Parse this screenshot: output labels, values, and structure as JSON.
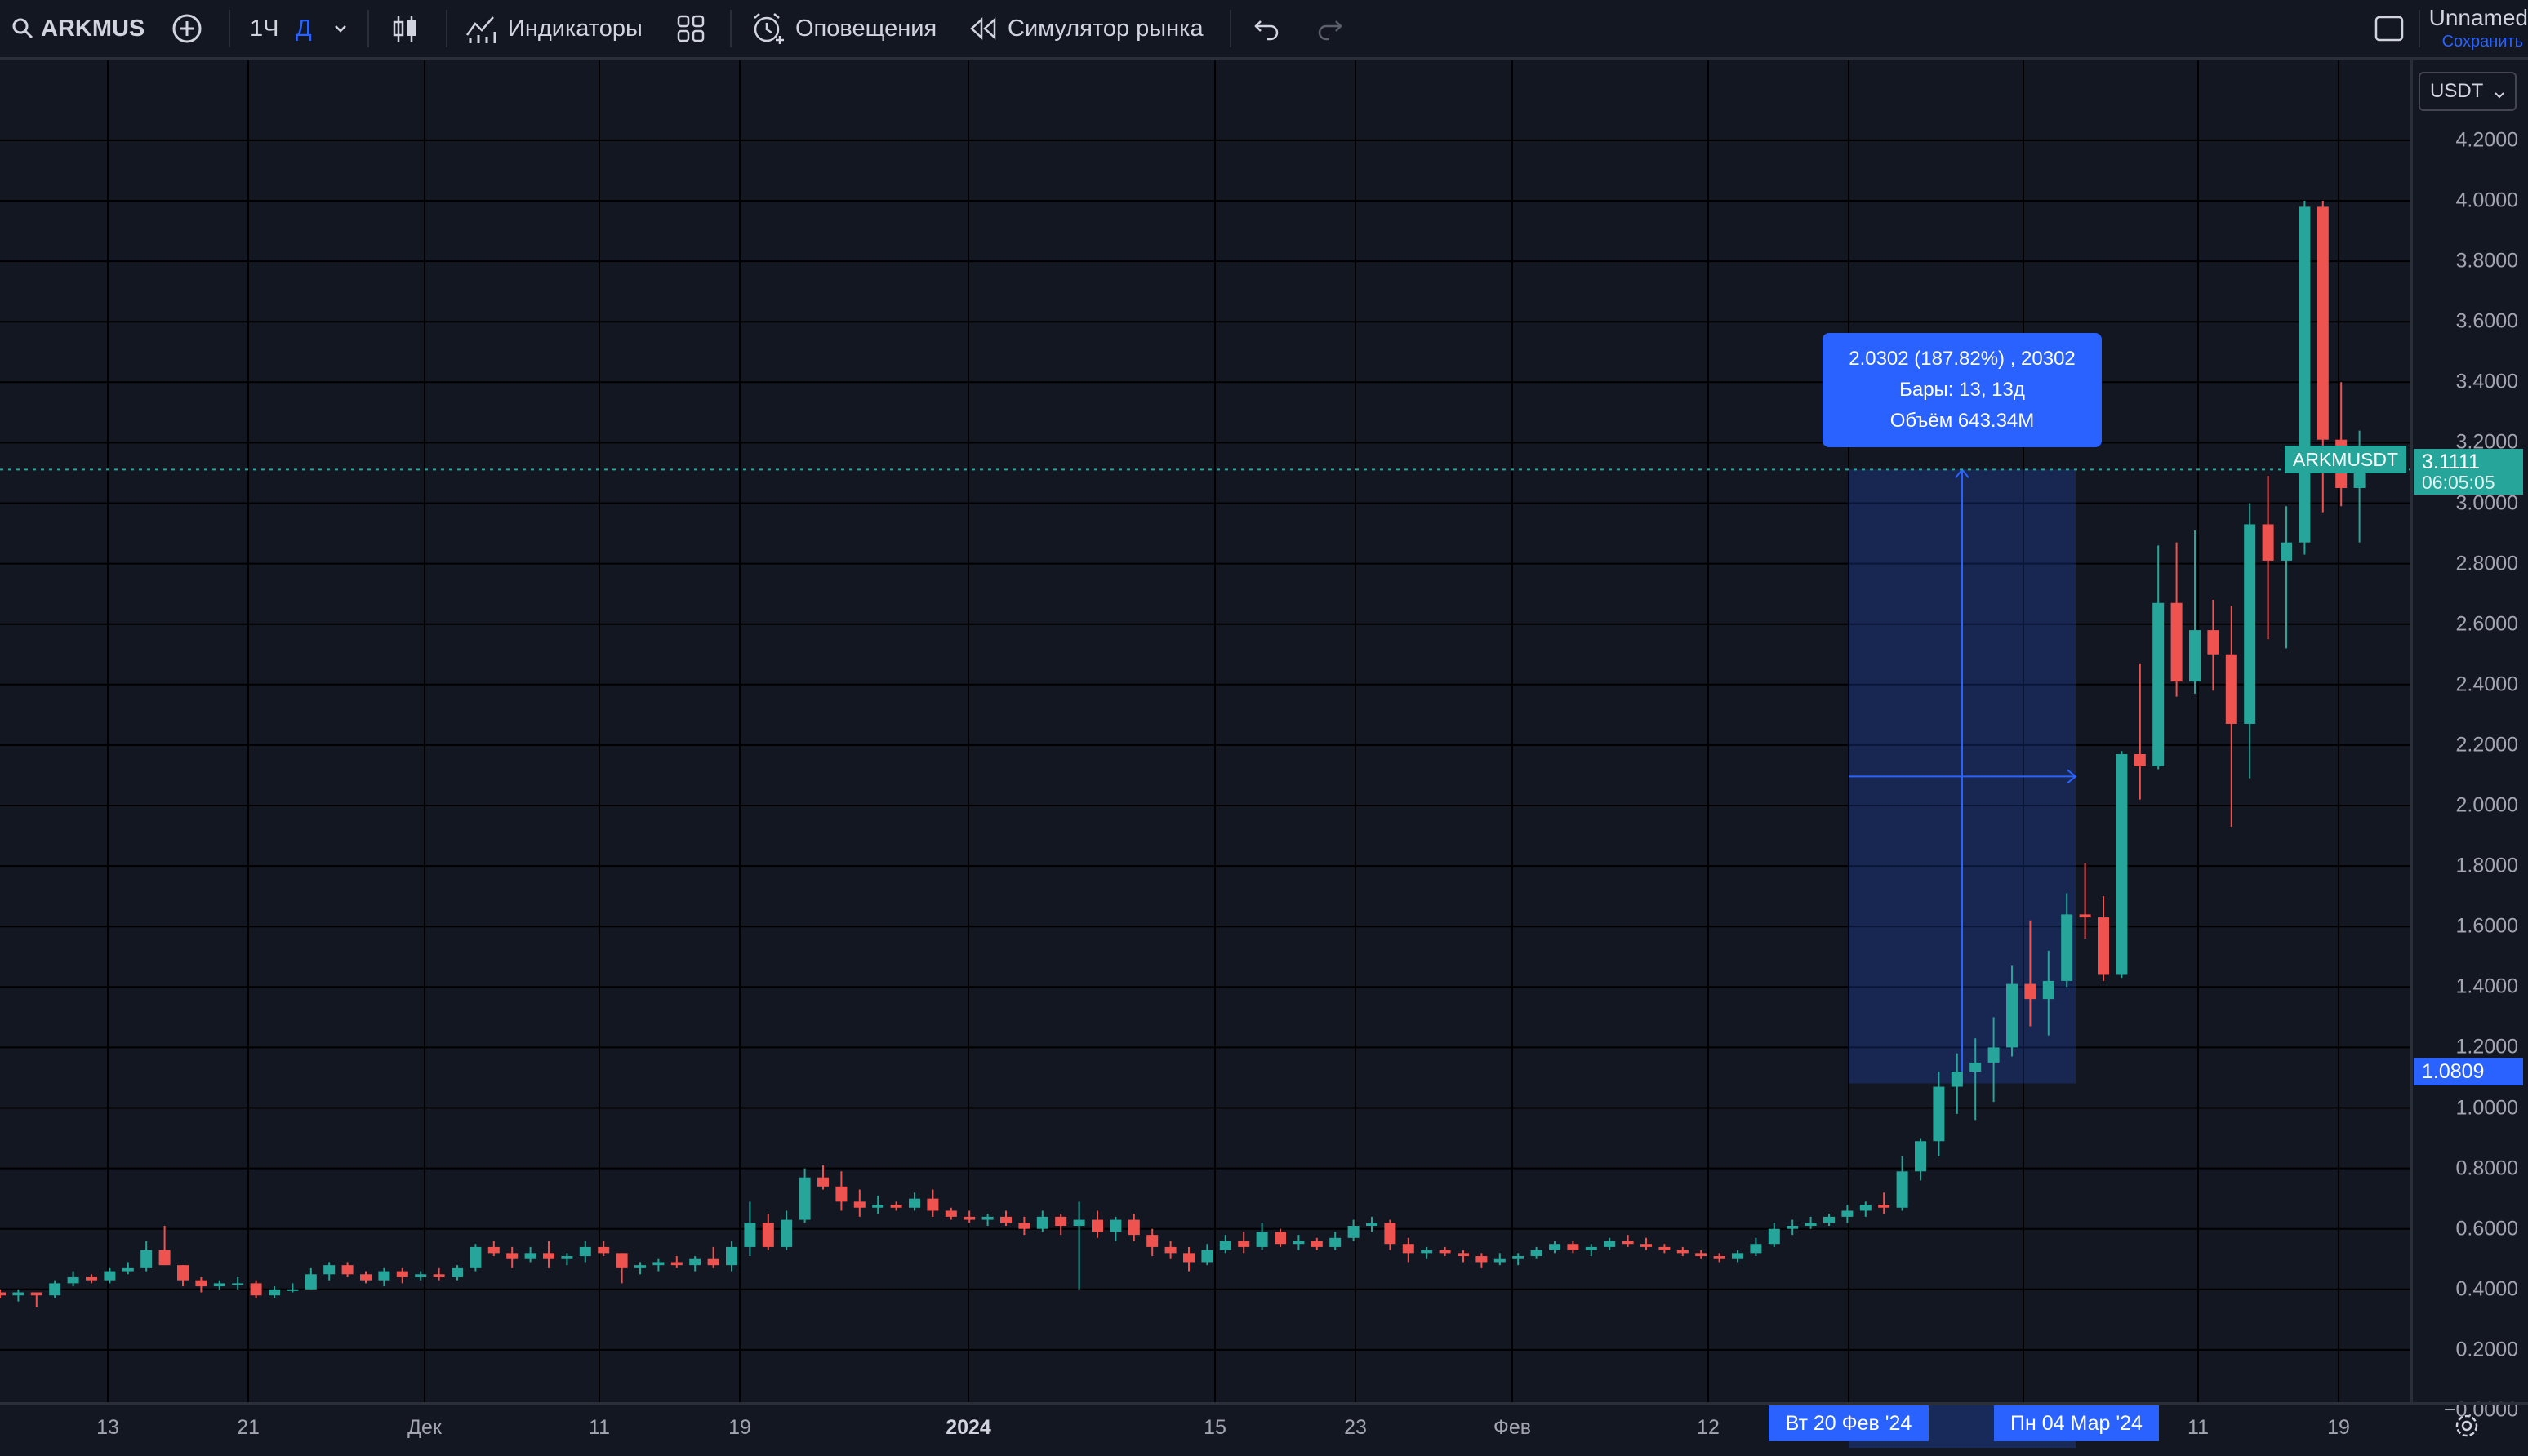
{
  "toolbar": {
    "symbol": "ARKMUS",
    "interval": "1Ч",
    "interval_alt": "Д",
    "indicators_label": "Индикаторы",
    "alerts_label": "Оповещения",
    "replay_label": "Симулятор рынка",
    "layout_name": "Unnamed",
    "save_label": "Сохранить"
  },
  "price_scale": {
    "currency": "USDT",
    "labels": [
      "4.2000",
      "4.0000",
      "3.8000",
      "3.6000",
      "3.4000",
      "3.2000",
      "3.0000",
      "2.8000",
      "2.6000",
      "2.4000",
      "2.2000",
      "2.0000",
      "1.8000",
      "1.6000",
      "1.4000",
      "1.2000",
      "1.0000",
      "0.8000",
      "0.6000",
      "0.4000",
      "0.2000",
      "−0.0000"
    ]
  },
  "time_scale": {
    "labels": [
      "13",
      "21",
      "Дек",
      "11",
      "19",
      "2024",
      "15",
      "23",
      "Фев",
      "12",
      "11",
      "19"
    ]
  },
  "measure_tooltip": {
    "line1": "2.0302 (187.82%) , 20302",
    "line2": "Бары: 13, 13д",
    "line3": "Объём 643.34M"
  },
  "last_price": {
    "symbol": "ARKMUSDT",
    "price": "3.1111",
    "countdown": "06:05:05"
  },
  "measure": {
    "start_price": "1.0809",
    "start_date": "Вт 20 Фев '24",
    "end_date": "Пн 04 Мар '24"
  },
  "colors": {
    "up": "#26a69a",
    "down": "#ef5350",
    "accent": "#2962ff",
    "background": "#131722",
    "grid": "#000000"
  },
  "chart_data": {
    "type": "candlestick",
    "symbol": "ARKMUSDT",
    "ylim": [
      0,
      4.3
    ],
    "candles": [
      {
        "o": 0.39,
        "h": 0.4,
        "l": 0.37,
        "c": 0.38
      },
      {
        "o": 0.38,
        "h": 0.4,
        "l": 0.36,
        "c": 0.39
      },
      {
        "o": 0.39,
        "h": 0.39,
        "l": 0.34,
        "c": 0.38
      },
      {
        "o": 0.38,
        "h": 0.43,
        "l": 0.37,
        "c": 0.42
      },
      {
        "o": 0.42,
        "h": 0.46,
        "l": 0.41,
        "c": 0.44
      },
      {
        "o": 0.44,
        "h": 0.45,
        "l": 0.42,
        "c": 0.43
      },
      {
        "o": 0.43,
        "h": 0.47,
        "l": 0.42,
        "c": 0.46
      },
      {
        "o": 0.46,
        "h": 0.49,
        "l": 0.45,
        "c": 0.47
      },
      {
        "o": 0.47,
        "h": 0.56,
        "l": 0.46,
        "c": 0.53
      },
      {
        "o": 0.53,
        "h": 0.61,
        "l": 0.48,
        "c": 0.48
      },
      {
        "o": 0.48,
        "h": 0.48,
        "l": 0.41,
        "c": 0.43
      },
      {
        "o": 0.43,
        "h": 0.44,
        "l": 0.39,
        "c": 0.41
      },
      {
        "o": 0.41,
        "h": 0.43,
        "l": 0.4,
        "c": 0.42
      },
      {
        "o": 0.42,
        "h": 0.44,
        "l": 0.4,
        "c": 0.42
      },
      {
        "o": 0.42,
        "h": 0.43,
        "l": 0.37,
        "c": 0.38
      },
      {
        "o": 0.38,
        "h": 0.41,
        "l": 0.37,
        "c": 0.4
      },
      {
        "o": 0.4,
        "h": 0.42,
        "l": 0.39,
        "c": 0.4
      },
      {
        "o": 0.4,
        "h": 0.47,
        "l": 0.4,
        "c": 0.45
      },
      {
        "o": 0.45,
        "h": 0.49,
        "l": 0.43,
        "c": 0.48
      },
      {
        "o": 0.48,
        "h": 0.49,
        "l": 0.44,
        "c": 0.45
      },
      {
        "o": 0.45,
        "h": 0.46,
        "l": 0.42,
        "c": 0.43
      },
      {
        "o": 0.43,
        "h": 0.47,
        "l": 0.41,
        "c": 0.46
      },
      {
        "o": 0.46,
        "h": 0.47,
        "l": 0.42,
        "c": 0.44
      },
      {
        "o": 0.44,
        "h": 0.46,
        "l": 0.43,
        "c": 0.45
      },
      {
        "o": 0.45,
        "h": 0.47,
        "l": 0.43,
        "c": 0.44
      },
      {
        "o": 0.44,
        "h": 0.48,
        "l": 0.43,
        "c": 0.47
      },
      {
        "o": 0.47,
        "h": 0.55,
        "l": 0.46,
        "c": 0.54
      },
      {
        "o": 0.54,
        "h": 0.56,
        "l": 0.51,
        "c": 0.52
      },
      {
        "o": 0.52,
        "h": 0.54,
        "l": 0.47,
        "c": 0.5
      },
      {
        "o": 0.5,
        "h": 0.54,
        "l": 0.49,
        "c": 0.52
      },
      {
        "o": 0.52,
        "h": 0.56,
        "l": 0.47,
        "c": 0.5
      },
      {
        "o": 0.5,
        "h": 0.52,
        "l": 0.48,
        "c": 0.51
      },
      {
        "o": 0.51,
        "h": 0.56,
        "l": 0.49,
        "c": 0.54
      },
      {
        "o": 0.54,
        "h": 0.56,
        "l": 0.51,
        "c": 0.52
      },
      {
        "o": 0.52,
        "h": 0.52,
        "l": 0.42,
        "c": 0.47
      },
      {
        "o": 0.47,
        "h": 0.49,
        "l": 0.45,
        "c": 0.48
      },
      {
        "o": 0.48,
        "h": 0.5,
        "l": 0.46,
        "c": 0.49
      },
      {
        "o": 0.49,
        "h": 0.51,
        "l": 0.47,
        "c": 0.48
      },
      {
        "o": 0.48,
        "h": 0.51,
        "l": 0.46,
        "c": 0.5
      },
      {
        "o": 0.5,
        "h": 0.54,
        "l": 0.47,
        "c": 0.48
      },
      {
        "o": 0.48,
        "h": 0.56,
        "l": 0.46,
        "c": 0.54
      },
      {
        "o": 0.54,
        "h": 0.69,
        "l": 0.51,
        "c": 0.62
      },
      {
        "o": 0.62,
        "h": 0.65,
        "l": 0.53,
        "c": 0.54
      },
      {
        "o": 0.54,
        "h": 0.66,
        "l": 0.53,
        "c": 0.63
      },
      {
        "o": 0.63,
        "h": 0.8,
        "l": 0.62,
        "c": 0.77
      },
      {
        "o": 0.77,
        "h": 0.81,
        "l": 0.73,
        "c": 0.74
      },
      {
        "o": 0.74,
        "h": 0.79,
        "l": 0.66,
        "c": 0.69
      },
      {
        "o": 0.69,
        "h": 0.73,
        "l": 0.64,
        "c": 0.67
      },
      {
        "o": 0.67,
        "h": 0.71,
        "l": 0.65,
        "c": 0.68
      },
      {
        "o": 0.68,
        "h": 0.69,
        "l": 0.66,
        "c": 0.67
      },
      {
        "o": 0.67,
        "h": 0.72,
        "l": 0.66,
        "c": 0.7
      },
      {
        "o": 0.7,
        "h": 0.73,
        "l": 0.64,
        "c": 0.66
      },
      {
        "o": 0.66,
        "h": 0.67,
        "l": 0.63,
        "c": 0.64
      },
      {
        "o": 0.64,
        "h": 0.66,
        "l": 0.62,
        "c": 0.63
      },
      {
        "o": 0.63,
        "h": 0.65,
        "l": 0.61,
        "c": 0.64
      },
      {
        "o": 0.64,
        "h": 0.66,
        "l": 0.61,
        "c": 0.62
      },
      {
        "o": 0.62,
        "h": 0.64,
        "l": 0.58,
        "c": 0.6
      },
      {
        "o": 0.6,
        "h": 0.66,
        "l": 0.59,
        "c": 0.64
      },
      {
        "o": 0.64,
        "h": 0.65,
        "l": 0.58,
        "c": 0.61
      },
      {
        "o": 0.61,
        "h": 0.69,
        "l": 0.4,
        "c": 0.63
      },
      {
        "o": 0.63,
        "h": 0.66,
        "l": 0.57,
        "c": 0.59
      },
      {
        "o": 0.59,
        "h": 0.64,
        "l": 0.56,
        "c": 0.63
      },
      {
        "o": 0.63,
        "h": 0.65,
        "l": 0.56,
        "c": 0.58
      },
      {
        "o": 0.58,
        "h": 0.6,
        "l": 0.51,
        "c": 0.54
      },
      {
        "o": 0.54,
        "h": 0.56,
        "l": 0.5,
        "c": 0.52
      },
      {
        "o": 0.52,
        "h": 0.54,
        "l": 0.46,
        "c": 0.49
      },
      {
        "o": 0.49,
        "h": 0.55,
        "l": 0.48,
        "c": 0.53
      },
      {
        "o": 0.53,
        "h": 0.58,
        "l": 0.52,
        "c": 0.56
      },
      {
        "o": 0.56,
        "h": 0.59,
        "l": 0.52,
        "c": 0.54
      },
      {
        "o": 0.54,
        "h": 0.62,
        "l": 0.53,
        "c": 0.59
      },
      {
        "o": 0.59,
        "h": 0.6,
        "l": 0.54,
        "c": 0.55
      },
      {
        "o": 0.55,
        "h": 0.58,
        "l": 0.53,
        "c": 0.56
      },
      {
        "o": 0.56,
        "h": 0.57,
        "l": 0.53,
        "c": 0.54
      },
      {
        "o": 0.54,
        "h": 0.59,
        "l": 0.53,
        "c": 0.57
      },
      {
        "o": 0.57,
        "h": 0.63,
        "l": 0.56,
        "c": 0.61
      },
      {
        "o": 0.61,
        "h": 0.64,
        "l": 0.59,
        "c": 0.62
      },
      {
        "o": 0.62,
        "h": 0.63,
        "l": 0.53,
        "c": 0.55
      },
      {
        "o": 0.55,
        "h": 0.57,
        "l": 0.49,
        "c": 0.52
      },
      {
        "o": 0.52,
        "h": 0.54,
        "l": 0.5,
        "c": 0.53
      },
      {
        "o": 0.53,
        "h": 0.54,
        "l": 0.51,
        "c": 0.52
      },
      {
        "o": 0.52,
        "h": 0.53,
        "l": 0.49,
        "c": 0.51
      },
      {
        "o": 0.51,
        "h": 0.52,
        "l": 0.47,
        "c": 0.49
      },
      {
        "o": 0.49,
        "h": 0.52,
        "l": 0.48,
        "c": 0.5
      },
      {
        "o": 0.5,
        "h": 0.52,
        "l": 0.48,
        "c": 0.51
      },
      {
        "o": 0.51,
        "h": 0.54,
        "l": 0.5,
        "c": 0.53
      },
      {
        "o": 0.53,
        "h": 0.56,
        "l": 0.52,
        "c": 0.55
      },
      {
        "o": 0.55,
        "h": 0.56,
        "l": 0.52,
        "c": 0.53
      },
      {
        "o": 0.53,
        "h": 0.55,
        "l": 0.51,
        "c": 0.54
      },
      {
        "o": 0.54,
        "h": 0.57,
        "l": 0.53,
        "c": 0.56
      },
      {
        "o": 0.56,
        "h": 0.58,
        "l": 0.54,
        "c": 0.55
      },
      {
        "o": 0.55,
        "h": 0.57,
        "l": 0.53,
        "c": 0.54
      },
      {
        "o": 0.54,
        "h": 0.55,
        "l": 0.52,
        "c": 0.53
      },
      {
        "o": 0.53,
        "h": 0.54,
        "l": 0.51,
        "c": 0.52
      },
      {
        "o": 0.52,
        "h": 0.53,
        "l": 0.5,
        "c": 0.51
      },
      {
        "o": 0.51,
        "h": 0.52,
        "l": 0.49,
        "c": 0.5
      },
      {
        "o": 0.5,
        "h": 0.53,
        "l": 0.49,
        "c": 0.52
      },
      {
        "o": 0.52,
        "h": 0.57,
        "l": 0.51,
        "c": 0.55
      },
      {
        "o": 0.55,
        "h": 0.62,
        "l": 0.54,
        "c": 0.6
      },
      {
        "o": 0.6,
        "h": 0.63,
        "l": 0.58,
        "c": 0.61
      },
      {
        "o": 0.61,
        "h": 0.64,
        "l": 0.6,
        "c": 0.62
      },
      {
        "o": 0.62,
        "h": 0.65,
        "l": 0.61,
        "c": 0.64
      },
      {
        "o": 0.64,
        "h": 0.68,
        "l": 0.62,
        "c": 0.66
      },
      {
        "o": 0.66,
        "h": 0.69,
        "l": 0.64,
        "c": 0.68
      },
      {
        "o": 0.68,
        "h": 0.72,
        "l": 0.65,
        "c": 0.67
      },
      {
        "o": 0.67,
        "h": 0.84,
        "l": 0.66,
        "c": 0.79
      },
      {
        "o": 0.79,
        "h": 0.9,
        "l": 0.76,
        "c": 0.89
      },
      {
        "o": 0.89,
        "h": 1.12,
        "l": 0.84,
        "c": 1.07
      },
      {
        "o": 1.07,
        "h": 1.18,
        "l": 0.98,
        "c": 1.12
      },
      {
        "o": 1.12,
        "h": 1.23,
        "l": 0.96,
        "c": 1.15
      },
      {
        "o": 1.15,
        "h": 1.3,
        "l": 1.02,
        "c": 1.2
      },
      {
        "o": 1.2,
        "h": 1.47,
        "l": 1.17,
        "c": 1.41
      },
      {
        "o": 1.41,
        "h": 1.62,
        "l": 1.27,
        "c": 1.36
      },
      {
        "o": 1.36,
        "h": 1.52,
        "l": 1.24,
        "c": 1.42
      },
      {
        "o": 1.42,
        "h": 1.71,
        "l": 1.4,
        "c": 1.64
      },
      {
        "o": 1.64,
        "h": 1.81,
        "l": 1.56,
        "c": 1.63
      },
      {
        "o": 1.63,
        "h": 1.7,
        "l": 1.42,
        "c": 1.44
      },
      {
        "o": 1.44,
        "h": 2.18,
        "l": 1.43,
        "c": 2.17
      },
      {
        "o": 2.17,
        "h": 2.47,
        "l": 2.02,
        "c": 2.13
      },
      {
        "o": 2.13,
        "h": 2.86,
        "l": 2.12,
        "c": 2.67
      },
      {
        "o": 2.67,
        "h": 2.87,
        "l": 2.36,
        "c": 2.41
      },
      {
        "o": 2.41,
        "h": 2.91,
        "l": 2.37,
        "c": 2.58
      },
      {
        "o": 2.58,
        "h": 2.68,
        "l": 2.38,
        "c": 2.5
      },
      {
        "o": 2.5,
        "h": 2.66,
        "l": 1.93,
        "c": 2.27
      },
      {
        "o": 2.27,
        "h": 3.0,
        "l": 2.09,
        "c": 2.93
      },
      {
        "o": 2.93,
        "h": 3.09,
        "l": 2.55,
        "c": 2.81
      },
      {
        "o": 2.81,
        "h": 2.99,
        "l": 2.52,
        "c": 2.87
      },
      {
        "o": 2.87,
        "h": 4.0,
        "l": 2.83,
        "c": 3.98
      },
      {
        "o": 3.98,
        "h": 4.0,
        "l": 2.97,
        "c": 3.21
      },
      {
        "o": 3.21,
        "h": 3.4,
        "l": 2.99,
        "c": 3.05
      },
      {
        "o": 3.05,
        "h": 3.24,
        "l": 2.87,
        "c": 3.11
      }
    ]
  }
}
